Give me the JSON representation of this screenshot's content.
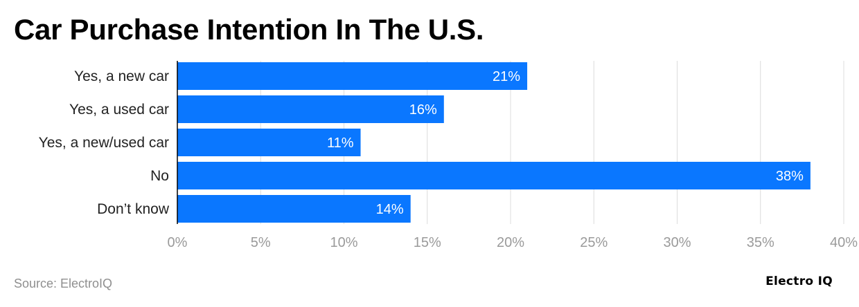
{
  "chart_data": {
    "type": "bar",
    "orientation": "horizontal",
    "title": "Car Purchase Intention In The U.S.",
    "categories": [
      "Yes, a new car",
      "Yes, a used car",
      "Yes, a new/used car",
      "No",
      "Don’t know"
    ],
    "values": [
      21,
      16,
      11,
      38,
      14
    ],
    "value_labels": [
      "21%",
      "16%",
      "11%",
      "38%",
      "14%"
    ],
    "xlim": [
      0,
      40
    ],
    "x_ticks": [
      0,
      5,
      10,
      15,
      20,
      25,
      30,
      35,
      40
    ],
    "x_tick_labels": [
      "0%",
      "5%",
      "10%",
      "15%",
      "20%",
      "25%",
      "30%",
      "35%",
      "40%"
    ],
    "xlabel": "",
    "ylabel": "",
    "grid": true,
    "bar_color": "#0a77ff",
    "label_color": "#ffffff"
  },
  "footer": {
    "source": "Source: ElectroIQ",
    "logo_text": "Electro IQ"
  }
}
